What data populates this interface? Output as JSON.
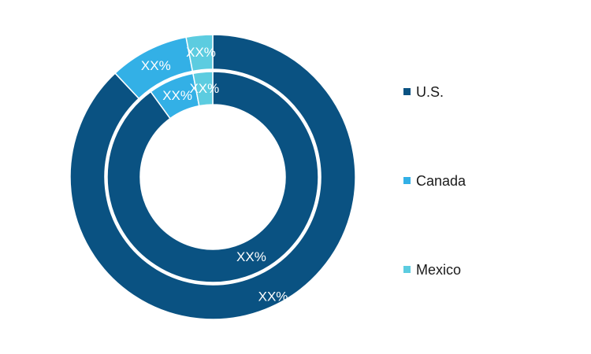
{
  "chart_data": {
    "type": "pie",
    "subtype": "nested-donut",
    "categories": [
      "U.S.",
      "Canada",
      "Mexico"
    ],
    "colors": [
      "#0a5282",
      "#33b0e6",
      "#5ccce0"
    ],
    "rings": [
      {
        "ring": "outer",
        "values": [
          88,
          9,
          3
        ],
        "labels": [
          "XX%",
          "XX%",
          "XX%"
        ]
      },
      {
        "ring": "inner",
        "values": [
          90,
          7,
          3
        ],
        "labels": [
          "XX%",
          "XX%",
          "XX%"
        ]
      }
    ],
    "legend": {
      "placement": "right",
      "entries": [
        "U.S.",
        "Canada",
        "Mexico"
      ]
    },
    "title": "",
    "xlabel": "",
    "ylabel": ""
  }
}
